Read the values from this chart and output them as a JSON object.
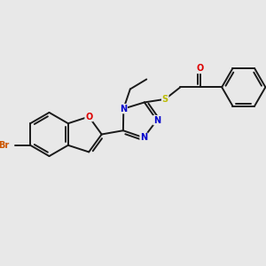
{
  "background_color": "#e8e8e8",
  "bond_color": "#1a1a1a",
  "bond_width": 1.4,
  "atom_colors": {
    "Br": "#cc5500",
    "O": "#dd0000",
    "N": "#0000cc",
    "S": "#bbbb00",
    "C": "#1a1a1a"
  },
  "font_size": 7.0,
  "figsize": [
    3.0,
    3.0
  ],
  "dpi": 100
}
